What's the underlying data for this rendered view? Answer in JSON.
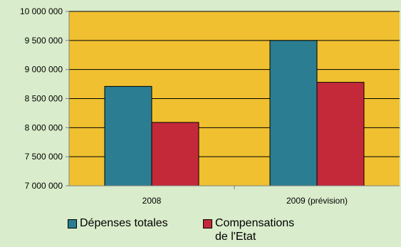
{
  "chart_data": {
    "type": "bar",
    "title": "",
    "xlabel": "",
    "ylabel": "",
    "categories": [
      "2008",
      "2009 (prévision)"
    ],
    "series": [
      {
        "name": "Dépenses totales",
        "color": "#2b7d91",
        "values": [
          8710000,
          9500000
        ]
      },
      {
        "name": "Compensations de l'Etat",
        "color": "#c4293a",
        "values": [
          8090000,
          8780000
        ]
      }
    ],
    "ylim": [
      7000000,
      10000000
    ],
    "yticks": [
      7000000,
      7500000,
      8000000,
      8500000,
      9000000,
      9500000,
      10000000
    ],
    "ytick_labels": [
      "7 000 000",
      "7 500 000",
      "8 000 000",
      "8 500 000",
      "9 000 000",
      "9 500 000",
      "10 000 000"
    ],
    "grid": true,
    "legend_position": "bottom",
    "plot_background": "#f0c030"
  }
}
